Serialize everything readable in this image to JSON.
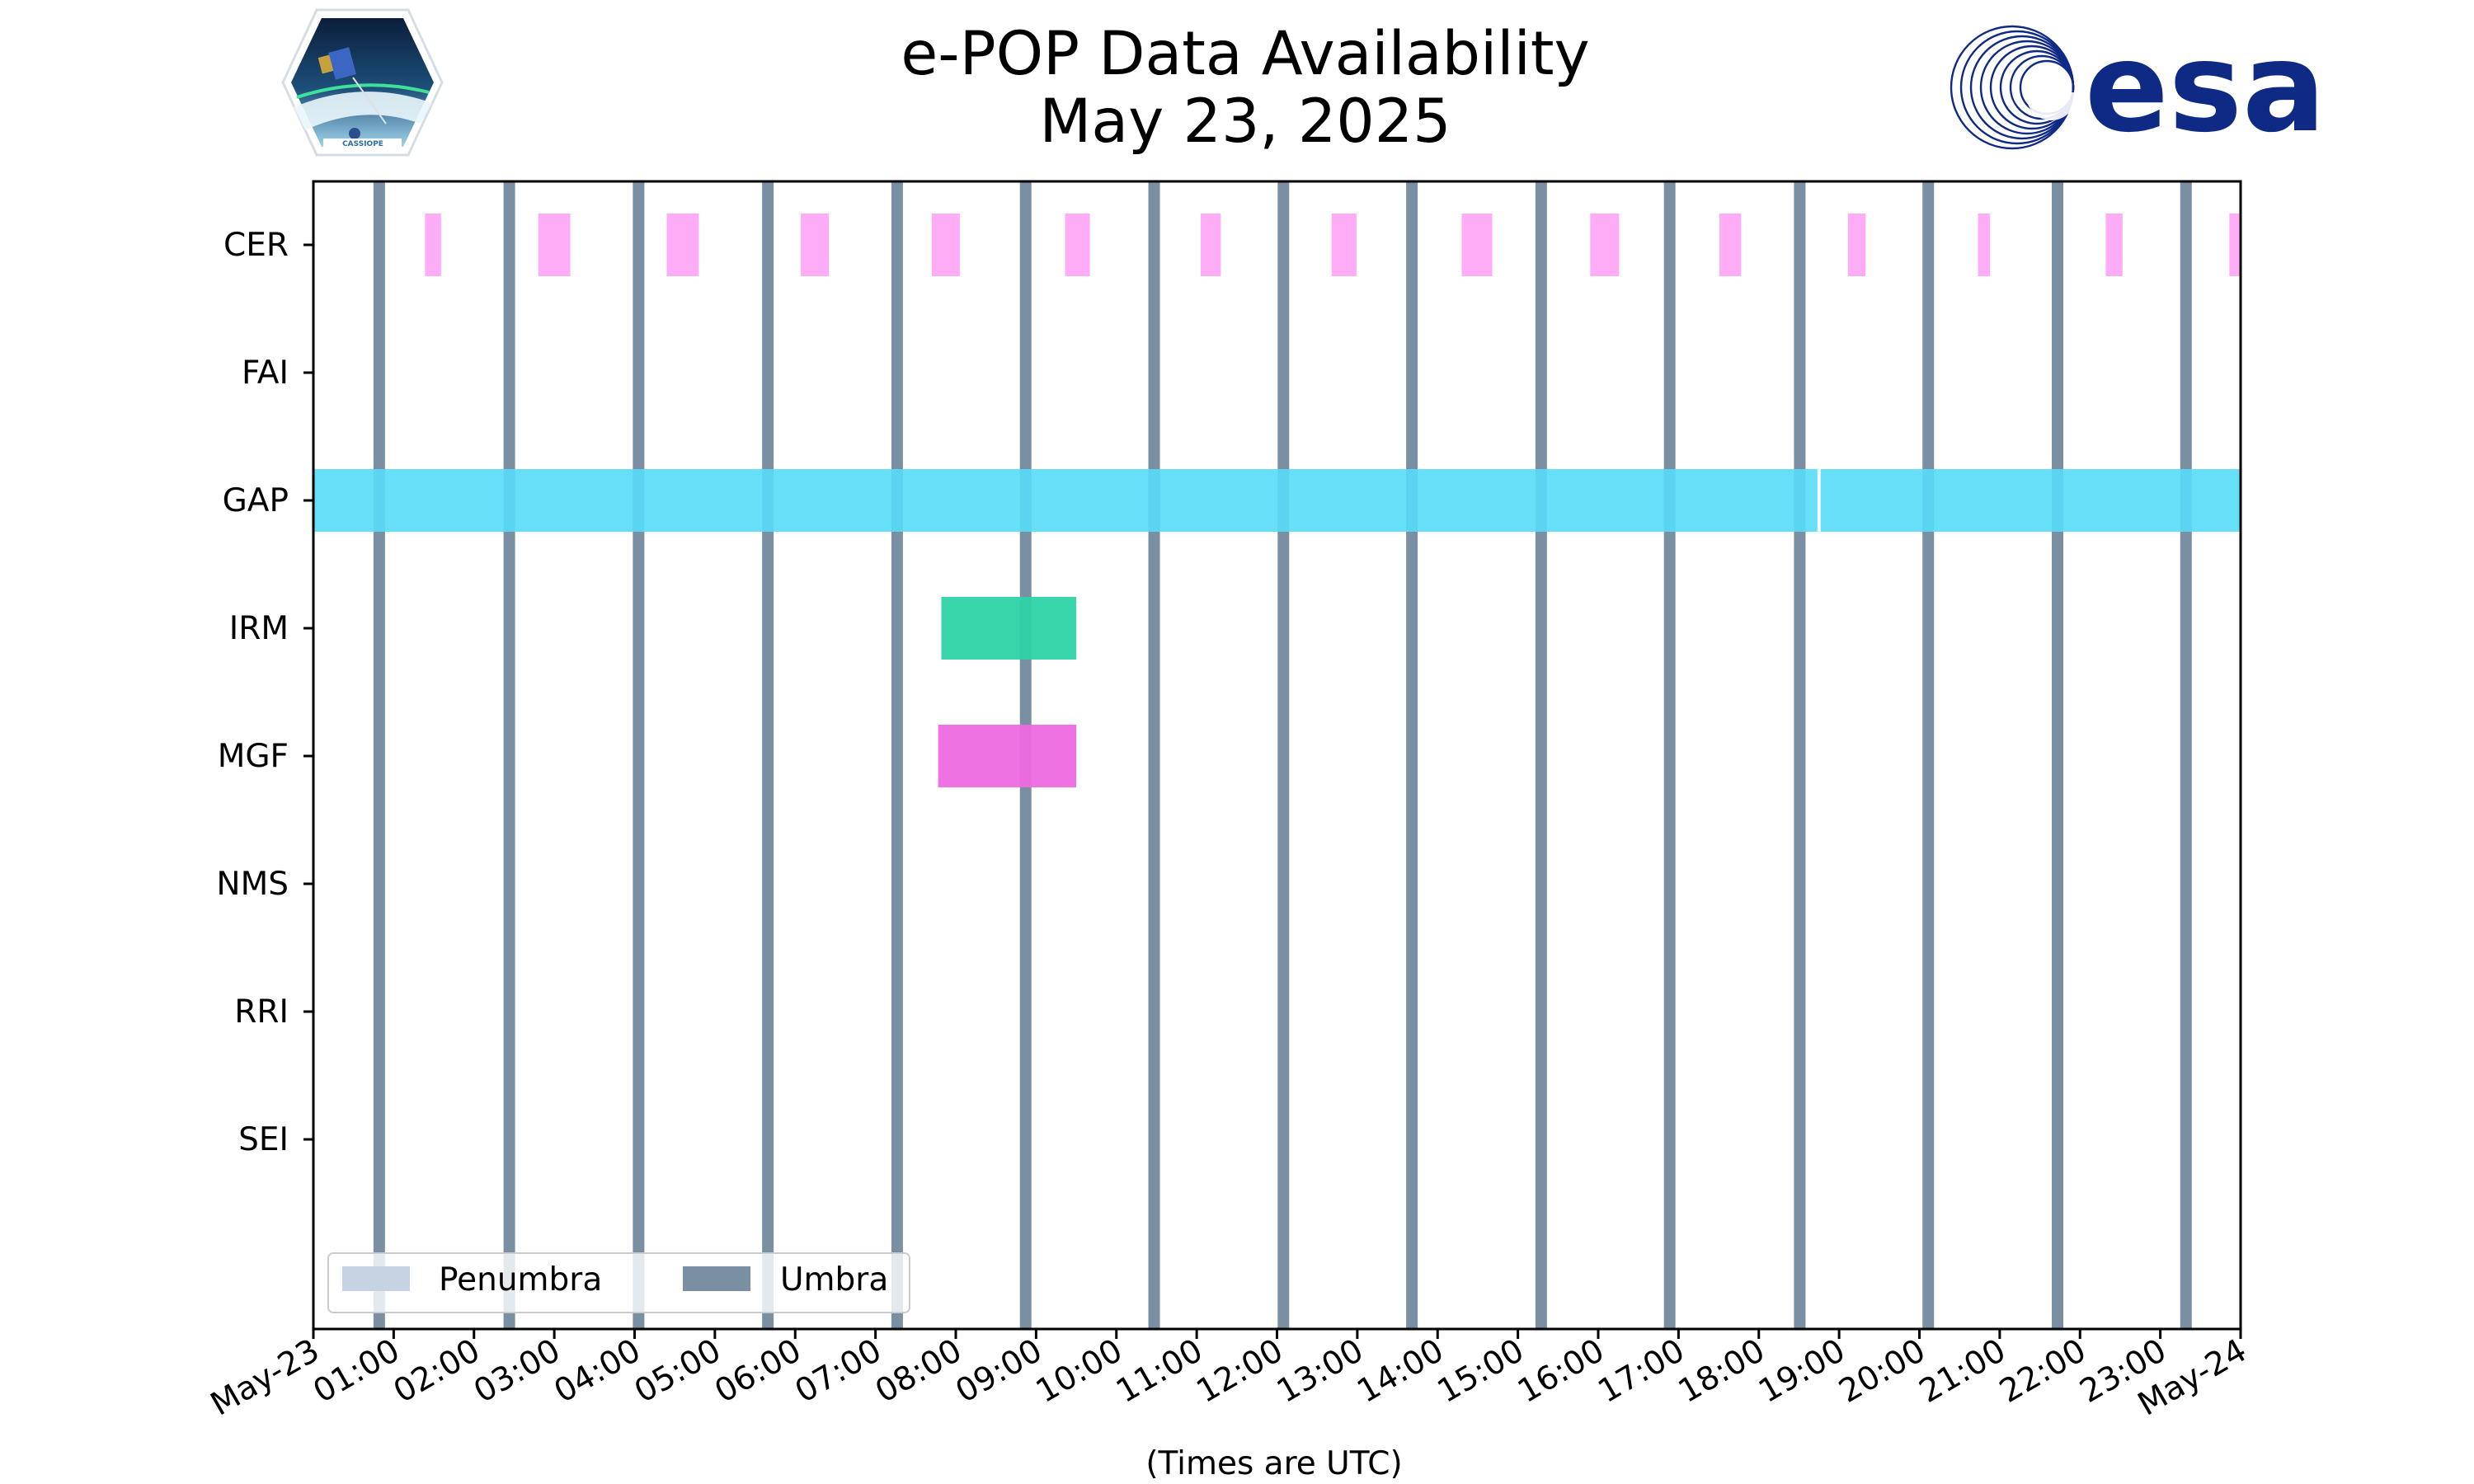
{
  "colors": {
    "penumbra": "#c5d3e3",
    "umbra": "#7b8fa3",
    "CER": "#ffa8f6",
    "GAP": "#56dcf8",
    "IRM": "#2ed3a6",
    "MGF": "#ee6ae2",
    "esa_brand": "#0f2a85"
  },
  "icons": {
    "cassiope_logo": "cassiope-mission-logo",
    "esa_logo": "esa-logo"
  },
  "logo_text": {
    "cassiope": "CASSIOPE",
    "esa": "esa"
  },
  "chart_data": {
    "type": "timeline",
    "title": "e-POP Data Availability",
    "subtitle": "May 23, 2025",
    "xlabel": "(Times are UTC)",
    "xlim": [
      "2025-05-23 00:00",
      "2025-05-24 00:00"
    ],
    "x_ticks": [
      "May-23",
      "01:00",
      "02:00",
      "03:00",
      "04:00",
      "05:00",
      "06:00",
      "07:00",
      "08:00",
      "09:00",
      "10:00",
      "11:00",
      "12:00",
      "13:00",
      "14:00",
      "15:00",
      "16:00",
      "17:00",
      "18:00",
      "19:00",
      "20:00",
      "21:00",
      "22:00",
      "23:00",
      "May-24"
    ],
    "categories": [
      "CER",
      "FAI",
      "GAP",
      "IRM",
      "MGF",
      "NMS",
      "RRI",
      "SEI"
    ],
    "grid": false,
    "legend": {
      "placement": "lower-left",
      "entries": [
        {
          "name": "Penumbra",
          "color": "#c5d3e3"
        },
        {
          "name": "Umbra",
          "color": "#7b8fa3"
        }
      ]
    },
    "umbra_hours": [
      0.82,
      2.44,
      4.05,
      5.66,
      7.27,
      8.87,
      10.47,
      12.08,
      13.68,
      15.29,
      16.89,
      18.51,
      20.11,
      21.72,
      23.32
    ],
    "series": [
      {
        "name": "CER",
        "intervals": [
          [
            1.39,
            1.59
          ],
          [
            2.8,
            3.2
          ],
          [
            4.4,
            4.8
          ],
          [
            6.07,
            6.42
          ],
          [
            7.7,
            8.05
          ],
          [
            9.36,
            9.67
          ],
          [
            11.05,
            11.3
          ],
          [
            12.68,
            12.99
          ],
          [
            14.3,
            14.68
          ],
          [
            15.9,
            16.26
          ],
          [
            17.51,
            17.78
          ],
          [
            19.11,
            19.33
          ],
          [
            20.73,
            20.88
          ],
          [
            22.32,
            22.53
          ],
          [
            23.86,
            24.0
          ]
        ]
      },
      {
        "name": "FAI",
        "intervals": []
      },
      {
        "name": "GAP",
        "intervals": [
          [
            0.0,
            18.73
          ],
          [
            18.77,
            24.0
          ]
        ]
      },
      {
        "name": "IRM",
        "intervals": [
          [
            7.82,
            9.5
          ]
        ]
      },
      {
        "name": "MGF",
        "intervals": [
          [
            7.78,
            9.5
          ]
        ]
      },
      {
        "name": "NMS",
        "intervals": []
      },
      {
        "name": "RRI",
        "intervals": []
      },
      {
        "name": "SEI",
        "intervals": []
      }
    ]
  }
}
